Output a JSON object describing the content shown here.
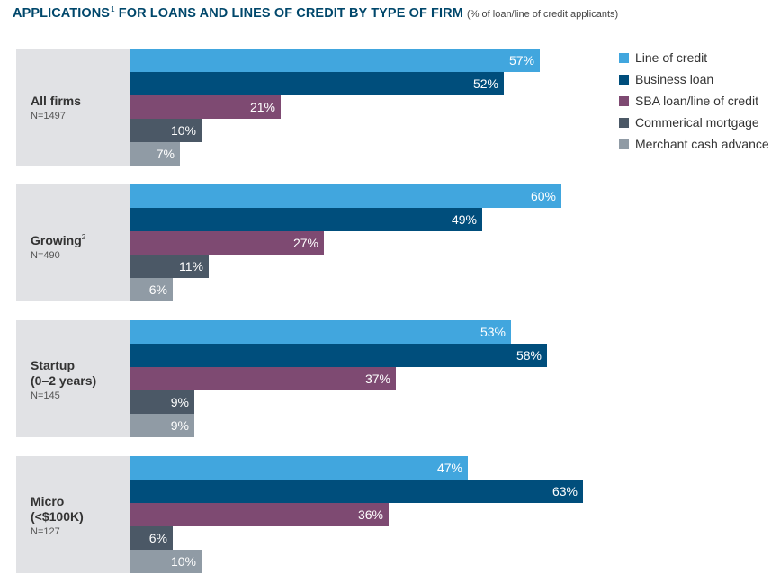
{
  "title": "APPLICATIONS",
  "title_sup": "1",
  "title_rest": " FOR LOANS AND LINES OF CREDIT BY TYPE OF FIRM",
  "subtitle": "(% of loan/line of credit applicants)",
  "chart_data": {
    "type": "bar",
    "orientation": "horizontal",
    "value_suffix": "%",
    "legend_position": "right",
    "grid": false,
    "categories": [
      {
        "label": "All firms",
        "sup": "",
        "label2": "",
        "n": "N=1497"
      },
      {
        "label": "Growing",
        "sup": "2",
        "label2": "",
        "n": "N=490"
      },
      {
        "label": "Startup",
        "sup": "",
        "label2": "(0–2 years)",
        "n": "N=145"
      },
      {
        "label": "Micro",
        "sup": "",
        "label2": "(<$100K)",
        "n": "N=127"
      }
    ],
    "series": [
      {
        "name": "Line of credit",
        "color": "#41a6de",
        "values": [
          57,
          60,
          53,
          47
        ]
      },
      {
        "name": "Business loan",
        "color": "#004e7c",
        "values": [
          52,
          49,
          58,
          63
        ]
      },
      {
        "name": "SBA loan/line of credit",
        "color": "#7e4a72",
        "values": [
          21,
          27,
          37,
          36
        ]
      },
      {
        "name": "Commerical mortgage",
        "color": "#4b5866",
        "values": [
          10,
          11,
          9,
          6
        ]
      },
      {
        "name": "Merchant cash advance",
        "color": "#909ba5",
        "values": [
          7,
          6,
          9,
          10
        ]
      }
    ]
  }
}
